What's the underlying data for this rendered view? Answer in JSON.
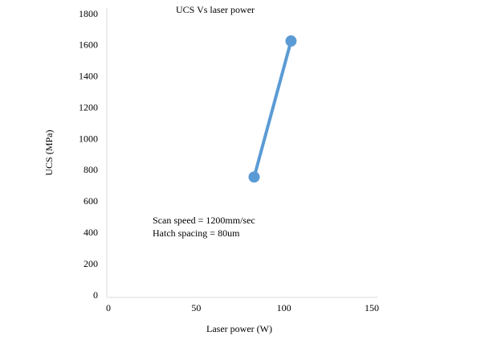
{
  "chart_data": {
    "type": "line",
    "title": "UCS Vs laser power",
    "x_label": "Laser power (W)",
    "y_label": "UCS (MPa)",
    "annotations": [
      "Scan speed = 1200mm/sec",
      "Hatch spacing = 80um"
    ],
    "x": [
      83,
      104
    ],
    "series": [
      {
        "color": "#5b9bd5",
        "values": [
          760,
          1630
        ]
      }
    ],
    "xlim": [
      0,
      150
    ],
    "xticks": [
      0,
      50,
      100,
      150
    ],
    "ylim": [
      0,
      1800
    ],
    "yticks": [
      0,
      200,
      400,
      600,
      800,
      1000,
      1200,
      1400,
      1600,
      1800
    ],
    "grid": false
  }
}
